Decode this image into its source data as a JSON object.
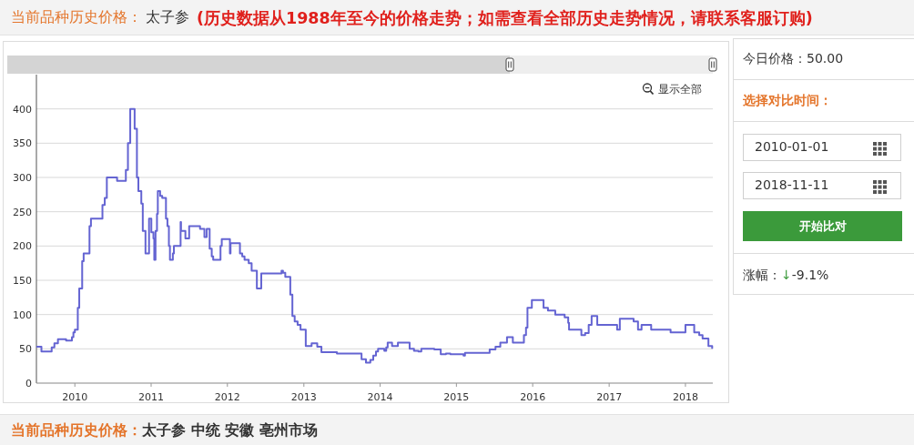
{
  "chart_data": {
    "type": "step",
    "x": [
      "2009-07-01",
      "2009-07-25",
      "2009-09-12",
      "2009-09-25",
      "2009-10-12",
      "2009-11-20",
      "2009-12-18",
      "2009-12-25",
      "2010-01-01",
      "2010-01-15",
      "2010-01-22",
      "2010-02-05",
      "2010-02-12",
      "2010-03-12",
      "2010-03-19",
      "2010-05-13",
      "2010-05-24",
      "2010-06-03",
      "2010-07-22",
      "2010-09-02",
      "2010-09-12",
      "2010-09-23",
      "2010-10-14",
      "2010-10-25",
      "2010-11-01",
      "2010-11-15",
      "2010-11-22",
      "2010-12-05",
      "2010-12-22",
      "2011-01-02",
      "2011-01-12",
      "2011-01-16",
      "2011-01-22",
      "2011-01-29",
      "2011-02-02",
      "2011-02-13",
      "2011-02-23",
      "2011-03-13",
      "2011-03-20",
      "2011-03-27",
      "2011-04-01",
      "2011-04-15",
      "2011-04-20",
      "2011-05-22",
      "2011-05-24",
      "2011-06-14",
      "2011-07-02",
      "2011-08-23",
      "2011-09-13",
      "2011-09-24",
      "2011-10-08",
      "2011-10-18",
      "2011-10-25",
      "2011-11-29",
      "2011-12-05",
      "2012-01-13",
      "2012-01-16",
      "2012-03-01",
      "2012-03-12",
      "2012-03-23",
      "2012-04-12",
      "2012-04-26",
      "2012-05-21",
      "2012-06-11",
      "2012-09-16",
      "2012-09-23",
      "2012-10-04",
      "2012-10-28",
      "2012-11-07",
      "2012-11-18",
      "2012-12-02",
      "2012-12-16",
      "2013-01-10",
      "2013-02-07",
      "2013-03-06",
      "2013-03-26",
      "2013-06-08",
      "2013-10-04",
      "2013-10-25",
      "2013-11-15",
      "2013-11-29",
      "2013-12-12",
      "2013-12-22",
      "2014-01-21",
      "2014-01-30",
      "2014-02-06",
      "2014-02-27",
      "2014-03-27",
      "2014-05-22",
      "2014-06-12",
      "2014-07-03",
      "2014-07-17",
      "2014-09-17",
      "2014-10-18",
      "2014-11-12",
      "2014-12-03",
      "2015-02-04",
      "2015-02-11",
      "2015-06-09",
      "2015-07-07",
      "2015-07-30",
      "2015-08-31",
      "2015-09-28",
      "2015-11-20",
      "2015-11-30",
      "2015-12-07",
      "2015-12-28",
      "2016-02-22",
      "2016-03-14",
      "2016-04-18",
      "2016-06-02",
      "2016-06-19",
      "2016-06-23",
      "2016-08-21",
      "2016-09-08",
      "2016-09-25",
      "2016-10-09",
      "2016-11-05",
      "2017-02-08",
      "2017-02-21",
      "2017-04-28",
      "2017-05-19",
      "2017-06-05",
      "2017-07-21",
      "2017-10-22",
      "2018-01-01",
      "2018-02-12",
      "2018-03-08",
      "2018-03-24",
      "2018-04-21",
      "2018-05-09"
    ],
    "series": [
      {
        "color": "#6464d2",
        "values": [
          53,
          46,
          52,
          58,
          64,
          62,
          67,
          74,
          78,
          110,
          138,
          178,
          189,
          229,
          240,
          260,
          270,
          300,
          295,
          311,
          350,
          400,
          371,
          300,
          280,
          262,
          222,
          189,
          240,
          220,
          211,
          180,
          222,
          247,
          280,
          273,
          270,
          240,
          229,
          200,
          180,
          189,
          200,
          235,
          222,
          211,
          229,
          225,
          213,
          225,
          196,
          185,
          180,
          200,
          210,
          189,
          204,
          189,
          185,
          180,
          175,
          164,
          138,
          160,
          164,
          161,
          155,
          129,
          98,
          90,
          85,
          78,
          54,
          58,
          53,
          45,
          43,
          35,
          30,
          34,
          40,
          46,
          50,
          47,
          52,
          59,
          54,
          59,
          50,
          47,
          46,
          50,
          49,
          42,
          43,
          42,
          40,
          44,
          49,
          53,
          59,
          67,
          59,
          70,
          81,
          110,
          121,
          110,
          106,
          100,
          96,
          88,
          78,
          70,
          73,
          85,
          98,
          85,
          78,
          94,
          90,
          78,
          85,
          78,
          74,
          85,
          74,
          70,
          65,
          54,
          50
        ]
      }
    ],
    "xlim": [
      "2009-07-01",
      "2018-05-12"
    ],
    "xticks": [
      "2010",
      "2011",
      "2012",
      "2013",
      "2014",
      "2015",
      "2016",
      "2017",
      "2018"
    ],
    "ylim": [
      0,
      450
    ],
    "yticks": [
      0,
      50,
      100,
      150,
      200,
      250,
      300,
      350,
      400
    ],
    "grid": "y",
    "annotations": [
      "当前品种历史价格：",
      "太子参",
      "(历史数据从1988年至今的价格走势；如需查看全部历史走势情况，请联系客服订购)",
      "显示全部",
      "今日价格：50.00",
      "选择对比时间：",
      "2010-01-01",
      "2018-11-11",
      "开始比对",
      "涨幅：",
      "↓",
      "-9.1%",
      "当前品种历史价格：",
      "太子参 中统 安徽 亳州市场"
    ]
  }
}
